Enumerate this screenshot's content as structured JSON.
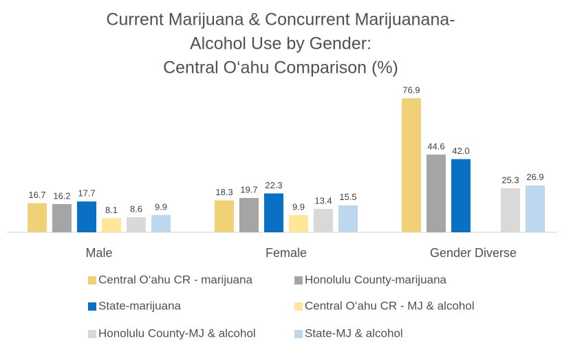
{
  "chart_data": {
    "type": "bar",
    "title": [
      "Current Marijuana & Concurrent Marijuanana-",
      "Alcohol Use by Gender:",
      "Central O‘ahu Comparison (%)"
    ],
    "categories": [
      "Male",
      "Female",
      "Gender Diverse"
    ],
    "series": [
      {
        "name": "Central O‘ahu CR - marijuana",
        "color": "#f0d178",
        "values": [
          16.7,
          18.3,
          76.9
        ]
      },
      {
        "name": "Honolulu County-marijuana",
        "color": "#a5a5a5",
        "values": [
          16.2,
          19.7,
          44.6
        ]
      },
      {
        "name": "State-marijuana",
        "color": "#0a70c4",
        "values": [
          17.7,
          22.3,
          42.0
        ],
        "value_labels": [
          "17.7",
          "22.3",
          "42.0"
        ]
      },
      {
        "name": "Central O‘ahu CR - MJ & alcohol",
        "color": "#ffe699",
        "values": [
          8.1,
          9.9,
          null
        ]
      },
      {
        "name": "Honolulu County-MJ & alcohol",
        "color": "#d9d9d9",
        "values": [
          8.6,
          13.4,
          25.3
        ]
      },
      {
        "name": "State-MJ & alcohol",
        "color": "#bdd7ee",
        "values": [
          9.9,
          15.5,
          26.9
        ]
      }
    ],
    "legend": "bottom"
  }
}
